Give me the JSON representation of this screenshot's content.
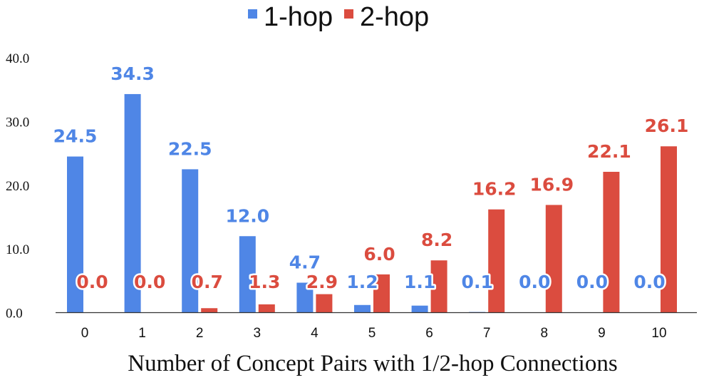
{
  "chart_data": {
    "type": "bar",
    "categories": [
      "0",
      "1",
      "2",
      "3",
      "4",
      "5",
      "6",
      "7",
      "8",
      "9",
      "10"
    ],
    "series": [
      {
        "name": "1-hop",
        "color": "#4f86e6",
        "values": [
          24.5,
          34.3,
          22.5,
          12.0,
          4.7,
          1.2,
          1.1,
          0.1,
          0.0,
          0.0,
          0.0
        ],
        "labels": [
          "24.5",
          "34.3",
          "22.5",
          "12.0",
          "4.7",
          "1.2",
          "1.1",
          "0.1",
          "0.0",
          "0.0",
          "0.0"
        ]
      },
      {
        "name": "2-hop",
        "color": "#db4c3f",
        "values": [
          0.0,
          0.0,
          0.7,
          1.3,
          2.9,
          6.0,
          8.2,
          16.2,
          16.9,
          22.1,
          26.1
        ],
        "labels": [
          "0.0",
          "0.0",
          "0.7",
          "1.3",
          "2.9",
          "6.0",
          "8.2",
          "16.2",
          "16.9",
          "22.1",
          "26.1"
        ]
      }
    ],
    "title": "",
    "xlabel": "Number of Concept Pairs with 1/2-hop Connections",
    "ylabel": "",
    "ylim": [
      0,
      40
    ],
    "yticks": [
      "0.0",
      "10.0",
      "20.0",
      "30.0",
      "40.0"
    ],
    "legend_position": "top-center",
    "grid": false
  }
}
